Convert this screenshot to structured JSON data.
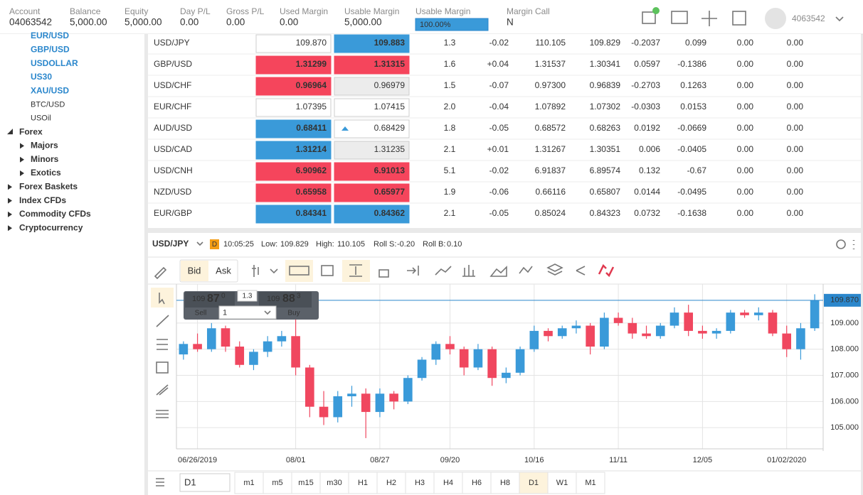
{
  "header": {
    "fields": [
      {
        "label": "Account",
        "value": "04063542"
      },
      {
        "label": "Balance",
        "value": "5,000.00"
      },
      {
        "label": "Equity",
        "value": "5,000.00"
      },
      {
        "label": "Day P/L",
        "value": "0.00"
      },
      {
        "label": "Gross P/L",
        "value": "0.00"
      },
      {
        "label": "Used Margin",
        "value": "0.00"
      },
      {
        "label": "Usable Margin",
        "value": "5,000.00"
      }
    ],
    "margin_bar": {
      "label": "Usable Margin",
      "value": "100.00%"
    },
    "margin_call": {
      "label": "Margin Call",
      "value": "N"
    },
    "user": "4063542"
  },
  "sidebar": {
    "instruments": [
      "EUR/USD",
      "GBP/USD",
      "USDOLLAR",
      "US30",
      "XAU/USD"
    ],
    "others": [
      "BTC/USD",
      "USOil"
    ],
    "tree": [
      {
        "label": "Forex",
        "children": [
          "Majors",
          "Minors",
          "Exotics"
        ]
      },
      {
        "label": "Forex Baskets"
      },
      {
        "label": "Index CFDs"
      },
      {
        "label": "Commodity CFDs"
      },
      {
        "label": "Cryptocurrency"
      }
    ]
  },
  "quotes": {
    "rows": [
      {
        "cells": [
          "USD/JPY",
          "109.870",
          "109.883",
          "1.3",
          "-0.02",
          "110.105",
          "109.829",
          "-0.2037",
          "0.099",
          "0.00",
          "0.00"
        ],
        "bid_fill": "#ffffff",
        "ask_fill": "#3a9ad9",
        "spread_color": "#2b87cc"
      },
      {
        "cells": [
          "GBP/USD",
          "1.31299",
          "1.31315",
          "1.6",
          "+0.04",
          "1.31537",
          "1.30341",
          "0.0597",
          "-0.1386",
          "0.00",
          "0.00"
        ],
        "bid_fill": "#f5455c",
        "ask_fill": "#f5455c",
        "spread_color": "#2b87cc"
      },
      {
        "cells": [
          "USD/CHF",
          "0.96964",
          "0.96979",
          "1.5",
          "-0.07",
          "0.97300",
          "0.96839",
          "-0.2703",
          "0.1263",
          "0.00",
          "0.00"
        ],
        "bid_fill": "#f5455c",
        "ask_fill": "#ececec",
        "spread_color": "#2b87cc"
      },
      {
        "cells": [
          "EUR/CHF",
          "1.07395",
          "1.07415",
          "2.0",
          "-0.04",
          "1.07892",
          "1.07302",
          "-0.0303",
          "0.0153",
          "0.00",
          "0.00"
        ],
        "bid_fill": "#ffffff",
        "ask_fill": "#ffffff",
        "spread_color": "#333333"
      },
      {
        "cells": [
          "AUD/USD",
          "0.68411",
          "0.68429",
          "1.8",
          "-0.05",
          "0.68572",
          "0.68263",
          "0.0192",
          "-0.0669",
          "0.00",
          "0.00"
        ],
        "bid_fill": "#3a9ad9",
        "ask_fill": "#ffffff",
        "spread_color": "#333333",
        "ask_arrow": "up"
      },
      {
        "cells": [
          "USD/CAD",
          "1.31214",
          "1.31235",
          "2.1",
          "+0.01",
          "1.31267",
          "1.30351",
          "0.006",
          "-0.0405",
          "0.00",
          "0.00"
        ],
        "bid_fill": "#3a9ad9",
        "ask_fill": "#ececec",
        "spread_color": "#e0394f"
      },
      {
        "cells": [
          "USD/CNH",
          "6.90962",
          "6.91013",
          "5.1",
          "-0.02",
          "6.91837",
          "6.89574",
          "0.132",
          "-0.67",
          "0.00",
          "0.00"
        ],
        "bid_fill": "#f5455c",
        "ask_fill": "#f5455c",
        "spread_color": "#e0394f"
      },
      {
        "cells": [
          "NZD/USD",
          "0.65958",
          "0.65977",
          "1.9",
          "-0.06",
          "0.66116",
          "0.65807",
          "0.0144",
          "-0.0495",
          "0.00",
          "0.00"
        ],
        "bid_fill": "#f5455c",
        "ask_fill": "#f5455c",
        "spread_color": "#e0394f"
      },
      {
        "cells": [
          "EUR/GBP",
          "0.84341",
          "0.84362",
          "2.1",
          "-0.05",
          "0.85024",
          "0.84323",
          "0.0732",
          "-0.1638",
          "0.00",
          "0.00"
        ],
        "bid_fill": "#3a9ad9",
        "ask_fill": "#3a9ad9",
        "spread_color": "#e0394f"
      }
    ]
  },
  "chart_panel": {
    "symbol": "USD/JPY",
    "badge": "D",
    "time": "10:05:25",
    "low_label": "Low:",
    "low": "109.829",
    "high_label": "High:",
    "high": "110.105",
    "roll_s_label": "Roll S:",
    "roll_s": "-0.20",
    "roll_b_label": "Roll B:",
    "roll_b": "0.10",
    "buttons": [
      "Bid",
      "Ask"
    ],
    "trade": {
      "sell_big": "109",
      "sell_pips": "87",
      "sell_frac": "0",
      "spread": "1.3",
      "buy_big": "109",
      "buy_pips": "88",
      "buy_frac": "3",
      "sell": "Sell",
      "buy": "Buy",
      "amount": "1"
    },
    "period": "D1",
    "timeframes": [
      "m1",
      "m5",
      "m15",
      "m30",
      "H1",
      "H2",
      "H3",
      "H4",
      "H6",
      "H8",
      "D1",
      "W1",
      "M1"
    ]
  },
  "chart_data": {
    "type": "candlestick",
    "up_color": "#3a9ad9",
    "down_color": "#f0475f",
    "grid": true,
    "ylim": [
      104.19,
      110.49
    ],
    "yticks": [
      {
        "value": 105,
        "label": "105.000"
      },
      {
        "value": 106,
        "label": "106.000"
      },
      {
        "value": 107,
        "label": "107.000"
      },
      {
        "value": 108,
        "label": "108.000"
      },
      {
        "value": 109,
        "label": "109.000"
      }
    ],
    "last_price": {
      "value": 109.87,
      "label": "109.870"
    },
    "categories": [
      null,
      "06/26/2019",
      null,
      null,
      null,
      null,
      null,
      null,
      "08/01",
      null,
      null,
      null,
      null,
      null,
      "08/27",
      null,
      null,
      null,
      null,
      "09/20",
      null,
      null,
      null,
      null,
      null,
      "10/16",
      null,
      null,
      null,
      null,
      null,
      "11/11",
      null,
      null,
      null,
      null,
      null,
      "12/05",
      null,
      null,
      null,
      null,
      null,
      "01/02/2020",
      null,
      null
    ],
    "candles": [
      [
        107.8,
        108.3,
        107.6,
        108.2
      ],
      [
        108.2,
        108.6,
        107.9,
        108.0
      ],
      [
        108.0,
        109.0,
        107.9,
        108.8
      ],
      [
        108.8,
        108.9,
        107.9,
        108.1
      ],
      [
        108.1,
        108.3,
        107.3,
        107.4
      ],
      [
        107.4,
        108.0,
        107.2,
        107.9
      ],
      [
        107.9,
        108.5,
        107.7,
        108.3
      ],
      [
        108.3,
        108.7,
        108.1,
        108.5
      ],
      [
        108.5,
        109.6,
        107.0,
        107.3
      ],
      [
        107.3,
        107.4,
        105.4,
        105.8
      ],
      [
        105.8,
        106.4,
        105.1,
        105.4
      ],
      [
        105.4,
        106.4,
        105.2,
        106.2
      ],
      [
        106.2,
        106.6,
        105.8,
        106.3
      ],
      [
        106.3,
        106.5,
        104.6,
        105.6
      ],
      [
        105.6,
        106.5,
        105.4,
        106.3
      ],
      [
        106.3,
        106.4,
        105.7,
        106.0
      ],
      [
        106.0,
        107.0,
        105.9,
        106.9
      ],
      [
        106.9,
        107.7,
        106.8,
        107.6
      ],
      [
        107.6,
        108.3,
        107.4,
        108.2
      ],
      [
        108.2,
        108.5,
        107.8,
        108.0
      ],
      [
        108.0,
        108.1,
        107.0,
        107.3
      ],
      [
        107.3,
        108.2,
        107.2,
        108.0
      ],
      [
        108.0,
        108.1,
        106.6,
        106.9
      ],
      [
        106.9,
        107.3,
        106.7,
        107.1
      ],
      [
        107.1,
        108.1,
        107.0,
        108.0
      ],
      [
        108.0,
        108.9,
        107.9,
        108.7
      ],
      [
        108.7,
        108.8,
        108.3,
        108.5
      ],
      [
        108.5,
        108.9,
        108.4,
        108.8
      ],
      [
        108.8,
        109.1,
        108.6,
        108.9
      ],
      [
        108.9,
        109.0,
        107.8,
        108.1
      ],
      [
        108.1,
        109.4,
        108.0,
        109.2
      ],
      [
        109.2,
        109.4,
        108.9,
        109.0
      ],
      [
        109.0,
        109.2,
        108.4,
        108.6
      ],
      [
        108.6,
        108.9,
        108.4,
        108.5
      ],
      [
        108.5,
        109.0,
        108.4,
        108.9
      ],
      [
        108.9,
        109.6,
        108.8,
        109.4
      ],
      [
        109.4,
        109.7,
        108.5,
        108.7
      ],
      [
        108.7,
        108.9,
        108.4,
        108.6
      ],
      [
        108.6,
        108.8,
        108.4,
        108.7
      ],
      [
        108.7,
        109.5,
        108.6,
        109.4
      ],
      [
        109.4,
        109.5,
        109.2,
        109.3
      ],
      [
        109.3,
        109.6,
        109.1,
        109.4
      ],
      [
        109.4,
        109.5,
        108.5,
        108.6
      ],
      [
        108.6,
        108.9,
        107.7,
        108.0
      ],
      [
        108.0,
        109.0,
        107.6,
        108.8
      ],
      [
        108.8,
        110.1,
        108.7,
        109.87
      ]
    ]
  }
}
